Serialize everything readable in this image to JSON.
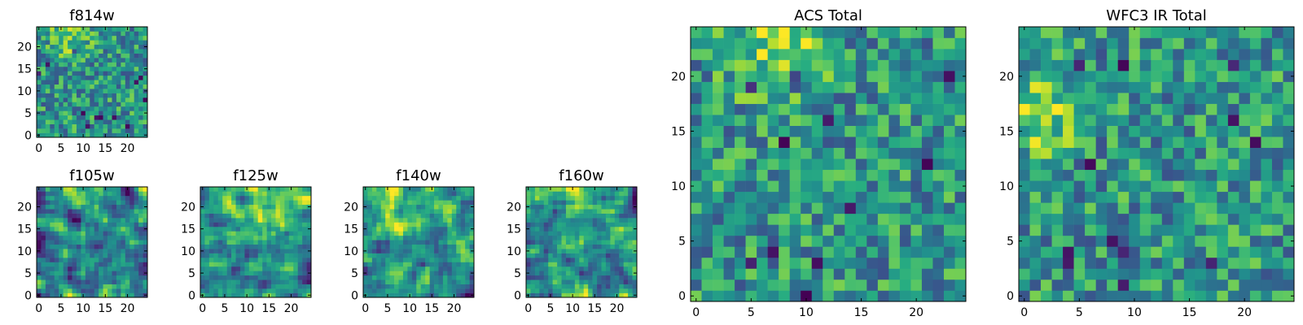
{
  "chart_data": [
    {
      "type": "heatmap",
      "title": "f814w",
      "grid_size": 25,
      "xlim": [
        -0.5,
        24.5
      ],
      "ylim": [
        -0.5,
        24.5
      ],
      "xticks": [
        0,
        5,
        10,
        15,
        20
      ],
      "yticks": [
        0,
        5,
        10,
        15,
        20
      ],
      "xlabel": "",
      "ylabel": "",
      "texture": "noisy",
      "bright_region": "top-left",
      "seed": 11
    },
    {
      "type": "heatmap",
      "title": "f105w",
      "grid_size": 25,
      "xlim": [
        -0.5,
        24.5
      ],
      "ylim": [
        -0.5,
        24.5
      ],
      "xticks": [
        0,
        5,
        10,
        15,
        20
      ],
      "yticks": [
        0,
        5,
        10,
        15,
        20
      ],
      "xlabel": "",
      "ylabel": "",
      "texture": "smooth",
      "bright_region": "top-center",
      "seed": 23
    },
    {
      "type": "heatmap",
      "title": "f125w",
      "grid_size": 25,
      "xlim": [
        -0.5,
        24.5
      ],
      "ylim": [
        -0.5,
        24.5
      ],
      "xticks": [
        0,
        5,
        10,
        15,
        20
      ],
      "yticks": [
        0,
        5,
        10,
        15,
        20
      ],
      "xlabel": "",
      "ylabel": "",
      "texture": "smooth",
      "bright_region": "top",
      "seed": 37
    },
    {
      "type": "heatmap",
      "title": "f140w",
      "grid_size": 25,
      "xlim": [
        -0.5,
        24.5
      ],
      "ylim": [
        -0.5,
        24.5
      ],
      "xticks": [
        0,
        5,
        10,
        15,
        20
      ],
      "yticks": [
        0,
        5,
        10,
        15,
        20
      ],
      "xlabel": "",
      "ylabel": "",
      "texture": "smooth",
      "bright_region": "top",
      "seed": 41
    },
    {
      "type": "heatmap",
      "title": "f160w",
      "grid_size": 25,
      "xlim": [
        -0.5,
        24.5
      ],
      "ylim": [
        -0.5,
        24.5
      ],
      "xticks": [
        0,
        5,
        10,
        15,
        20
      ],
      "yticks": [
        0,
        5,
        10,
        15,
        20
      ],
      "xlabel": "",
      "ylabel": "",
      "texture": "smooth",
      "bright_region": "top-center",
      "seed": 53
    },
    {
      "type": "heatmap",
      "title": "ACS Total",
      "grid_size": 25,
      "xlim": [
        -0.5,
        24.5
      ],
      "ylim": [
        -0.5,
        24.5
      ],
      "xticks": [
        0,
        5,
        10,
        15,
        20
      ],
      "yticks": [
        0,
        5,
        10,
        15,
        20
      ],
      "xlabel": "",
      "ylabel": "",
      "texture": "noisy",
      "bright_region": "top-left",
      "seed": 67
    },
    {
      "type": "heatmap",
      "title": "WFC3 IR Total",
      "grid_size": 25,
      "xlim": [
        -0.5,
        24.5
      ],
      "ylim": [
        -0.5,
        24.5
      ],
      "xticks": [
        0,
        5,
        10,
        15,
        20
      ],
      "yticks": [
        0,
        5,
        10,
        15,
        20
      ],
      "xlabel": "",
      "ylabel": "",
      "texture": "noisy",
      "bright_region": "left",
      "seed": 79
    }
  ],
  "colormap": "viridis",
  "colors": {
    "viridis_low": "#440154",
    "viridis_mid": "#21918c",
    "viridis_high": "#fde725"
  }
}
